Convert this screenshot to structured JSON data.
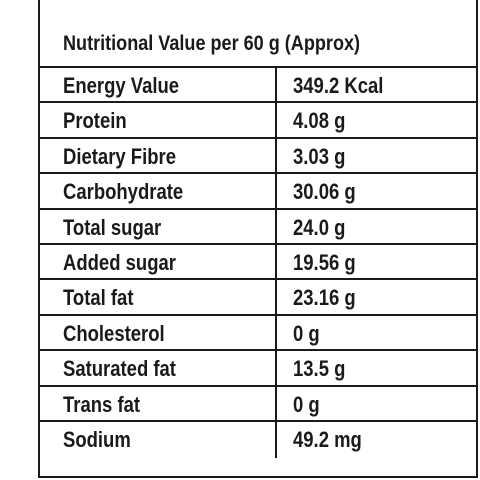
{
  "title": "Nutritional Value per 60 g (Approx)",
  "rows": [
    {
      "name": "Energy Value",
      "value": "349.2 Kcal"
    },
    {
      "name": "Protein",
      "value": "4.08 g"
    },
    {
      "name": "Dietary Fibre",
      "value": "3.03 g"
    },
    {
      "name": "Carbohydrate",
      "value": "30.06 g"
    },
    {
      "name": "Total sugar",
      "value": "24.0 g"
    },
    {
      "name": "Added sugar",
      "value": "19.56 g"
    },
    {
      "name": "Total fat",
      "value": "23.16 g"
    },
    {
      "name": "Cholesterol",
      "value": "0 g"
    },
    {
      "name": "Saturated fat",
      "value": "13.5 g"
    },
    {
      "name": "Trans fat",
      "value": "0 g"
    },
    {
      "name": "Sodium",
      "value": "49.2 mg"
    }
  ]
}
